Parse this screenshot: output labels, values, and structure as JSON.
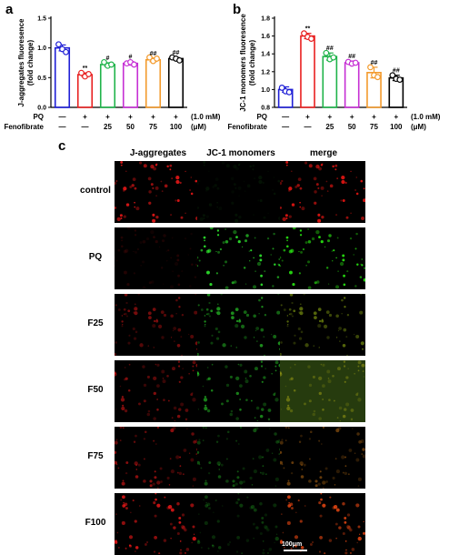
{
  "panels": {
    "a": "a",
    "b": "b",
    "c": "c"
  },
  "chart_data": [
    {
      "type": "bar",
      "panel": "a",
      "ylabel_lines": [
        "J-aggregates fluoresence",
        "(fold change)"
      ],
      "ylim": [
        0,
        1.5
      ],
      "yticks": [
        "0.0",
        "0.5",
        "1.0",
        "1.5"
      ],
      "ytick_values": [
        0.0,
        0.5,
        1.0,
        1.5
      ],
      "categories": [
        "control",
        "PQ",
        "F25",
        "F50",
        "F75",
        "F100"
      ],
      "values": [
        1.0,
        0.55,
        0.72,
        0.74,
        0.8,
        0.82
      ],
      "errors": [
        0.05,
        0.03,
        0.03,
        0.03,
        0.03,
        0.02
      ],
      "points": [
        [
          1.06,
          0.98,
          0.93
        ],
        [
          0.58,
          0.52,
          0.56
        ],
        [
          0.76,
          0.7,
          0.72
        ],
        [
          0.74,
          0.76,
          0.72
        ],
        [
          0.84,
          0.78,
          0.82
        ],
        [
          0.84,
          0.82,
          0.79
        ]
      ],
      "colors": [
        "#1f1fd6",
        "#e82020",
        "#1fb34a",
        "#c62fd4",
        "#f39a2c",
        "#000000"
      ],
      "significance": [
        "",
        "**",
        "#",
        "#",
        "##",
        "##"
      ],
      "treatment_rows": [
        {
          "label": "PQ",
          "values": [
            "—",
            "+",
            "+",
            "+",
            "+",
            "+"
          ],
          "unit": "(1.0 mM)"
        },
        {
          "label": "Fenofibrate",
          "values": [
            "—",
            "—",
            "25",
            "50",
            "75",
            "100"
          ],
          "unit": "(μM)"
        }
      ]
    },
    {
      "type": "bar",
      "panel": "b",
      "ylabel_lines": [
        "JC-1 monomers fluoresence",
        "(fold change)"
      ],
      "ylim": [
        0.8,
        1.8
      ],
      "yticks": [
        "0.8",
        "1.0",
        "1.2",
        "1.4",
        "1.6",
        "1.8"
      ],
      "ytick_values": [
        0.8,
        1.0,
        1.2,
        1.4,
        1.6,
        1.8
      ],
      "categories": [
        "control",
        "PQ",
        "F25",
        "F50",
        "F75",
        "F100"
      ],
      "values": [
        1.0,
        1.6,
        1.37,
        1.3,
        1.19,
        1.13
      ],
      "errors": [
        0.03,
        0.03,
        0.04,
        0.02,
        0.06,
        0.03
      ],
      "points": [
        [
          1.02,
          0.98,
          0.97
        ],
        [
          1.63,
          1.59,
          1.57
        ],
        [
          1.41,
          1.34,
          1.36
        ],
        [
          1.31,
          1.29,
          1.3
        ],
        [
          1.25,
          1.16,
          1.14
        ],
        [
          1.16,
          1.12,
          1.11
        ]
      ],
      "colors": [
        "#1f1fd6",
        "#e82020",
        "#1fb34a",
        "#c62fd4",
        "#f39a2c",
        "#000000"
      ],
      "significance": [
        "",
        "**",
        "##",
        "##",
        "##",
        "##"
      ],
      "treatment_rows": [
        {
          "label": "PQ",
          "values": [
            "—",
            "+",
            "+",
            "+",
            "+",
            "+"
          ],
          "unit": "(1.0 mM)"
        },
        {
          "label": "Fenofibrate",
          "values": [
            "—",
            "—",
            "25",
            "50",
            "75",
            "100"
          ],
          "unit": "(μM)"
        }
      ]
    }
  ],
  "micrograph": {
    "columns": [
      "J-aggregates",
      "JC-1 monomers",
      "merge"
    ],
    "rows": [
      "control",
      "PQ",
      "F25",
      "F50",
      "F75",
      "F100"
    ],
    "red_intensity": [
      0.9,
      0.15,
      0.5,
      0.55,
      0.6,
      0.85
    ],
    "green_intensity": [
      0.08,
      0.9,
      0.6,
      0.55,
      0.35,
      0.25
    ],
    "scale_bar": "100μm"
  }
}
